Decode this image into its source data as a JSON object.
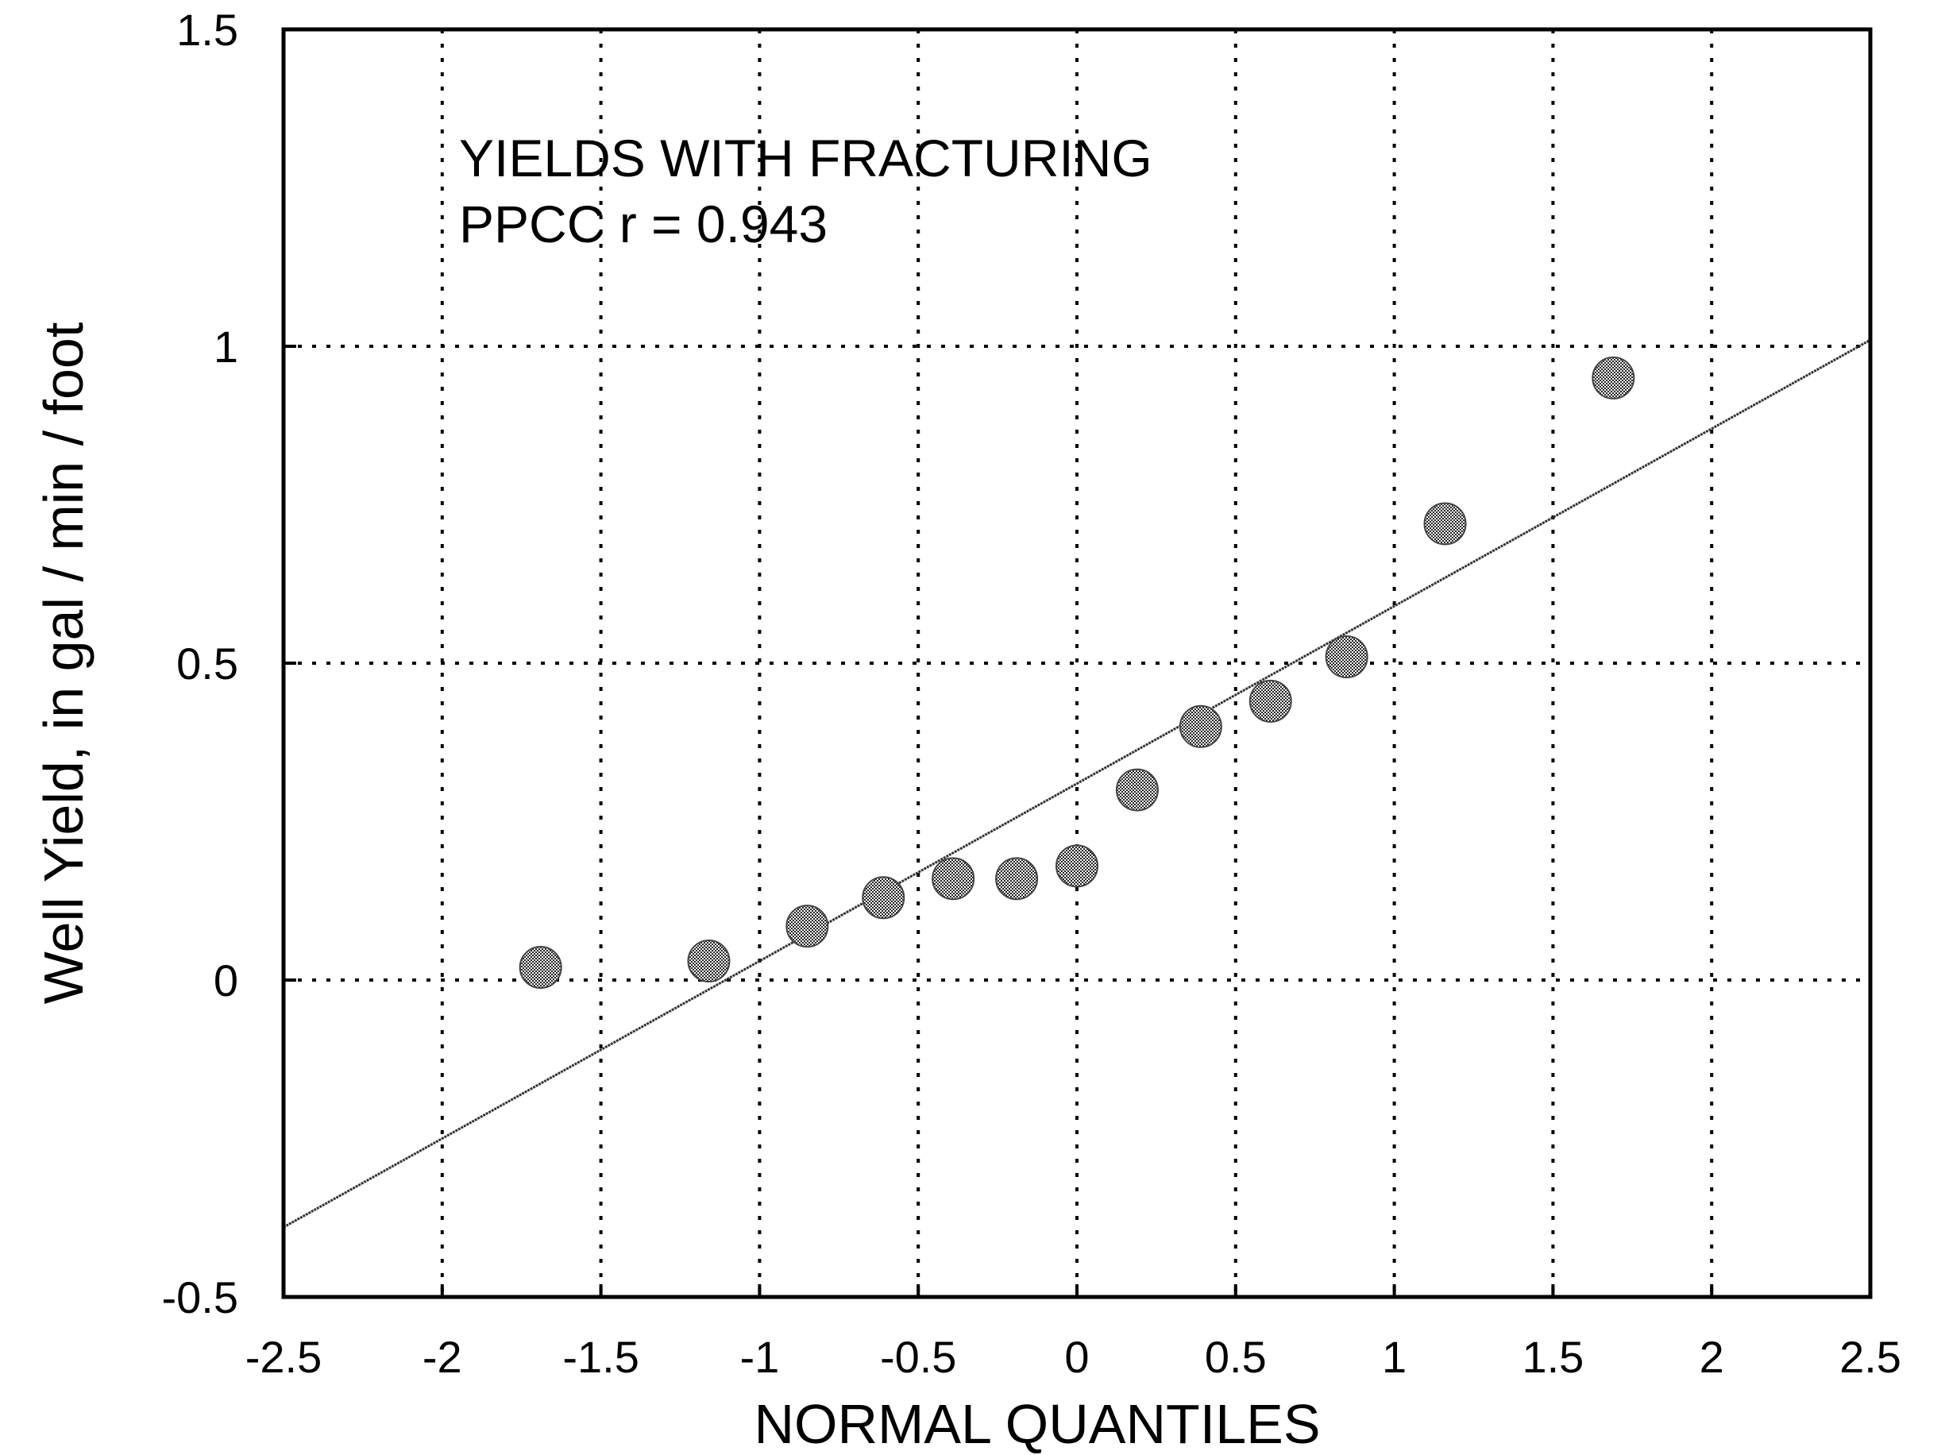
{
  "chart_data": {
    "type": "scatter",
    "title": "",
    "xlabel": "NORMAL QUANTILES",
    "ylabel": "Well Yield, in gal / min / foot",
    "xlim": [
      -2.5,
      2.5
    ],
    "ylim": [
      -0.5,
      1.5
    ],
    "xticks": [
      -2.5,
      -2,
      -1.5,
      -1,
      -0.5,
      0,
      0.5,
      1,
      1.5,
      2,
      2.5
    ],
    "xtick_labels": [
      "-2.5",
      "-2",
      "-1.5",
      "-1",
      "-0.5",
      "0",
      "0.5",
      "1",
      "1.5",
      "2",
      "2.5"
    ],
    "yticks": [
      -0.5,
      0,
      0.5,
      1,
      1.5
    ],
    "ytick_labels": [
      "-0.5",
      "0",
      "0.5",
      "1",
      "1.5"
    ],
    "grid": true,
    "annotations": [
      "YIELDS WITH FRACTURING",
      "PPCC r = 0.943"
    ],
    "points": [
      {
        "x": -1.69,
        "y": 0.02
      },
      {
        "x": -1.16,
        "y": 0.03
      },
      {
        "x": -0.85,
        "y": 0.085
      },
      {
        "x": -0.61,
        "y": 0.13
      },
      {
        "x": -0.39,
        "y": 0.16
      },
      {
        "x": -0.19,
        "y": 0.16
      },
      {
        "x": 0.0,
        "y": 0.18
      },
      {
        "x": 0.19,
        "y": 0.3
      },
      {
        "x": 0.39,
        "y": 0.4
      },
      {
        "x": 0.61,
        "y": 0.44
      },
      {
        "x": 0.85,
        "y": 0.51
      },
      {
        "x": 1.16,
        "y": 0.72
      },
      {
        "x": 1.69,
        "y": 0.95
      }
    ],
    "fit_line": {
      "intercept": 0.31,
      "slope": 0.28
    }
  }
}
